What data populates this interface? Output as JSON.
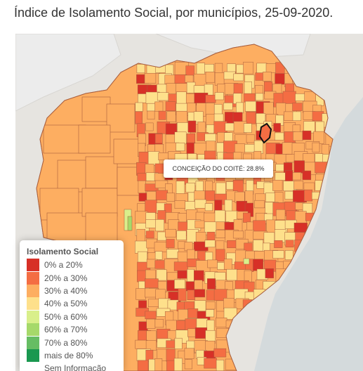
{
  "title": "Índice de Isolamento Social, por municípios, 25-09-2020.",
  "tooltip": {
    "text": "CONCEIÇÃO DO COITÉ: 28.8%"
  },
  "legend": {
    "title": "Isolamento Social",
    "items": [
      {
        "label": "0% a 20%",
        "color": "#d73027"
      },
      {
        "label": "20% a 30%",
        "color": "#f46d43"
      },
      {
        "label": "30% a 40%",
        "color": "#fdae61"
      },
      {
        "label": "40% a 50%",
        "color": "#fee08b"
      },
      {
        "label": "50% a 60%",
        "color": "#d9ef8b"
      },
      {
        "label": "60% a 70%",
        "color": "#a6d96a"
      },
      {
        "label": "70% a 80%",
        "color": "#66bd63"
      },
      {
        "label": "mais de 80%",
        "color": "#1a9850"
      },
      {
        "label": "Sem Informação",
        "color": "#ffffff"
      }
    ]
  },
  "colors": {
    "basemap": "#e6e4e0",
    "ocean": "#d4dadc",
    "neighbor_land": "#ececec",
    "boundary": "#a95f3e",
    "highlight_outline": "#111111"
  }
}
